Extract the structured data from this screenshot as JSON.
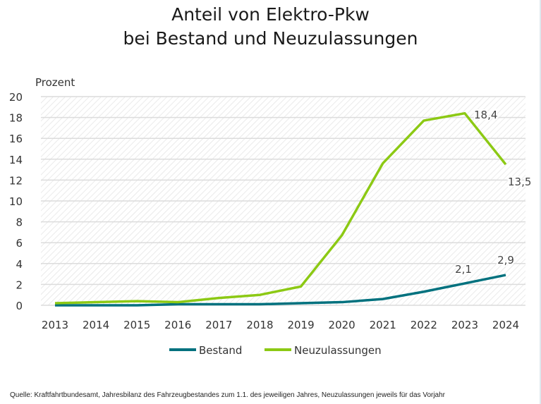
{
  "chart_data": {
    "type": "line",
    "title": [
      "Anteil von Elektro-Pkw",
      "bei Bestand und Neuzulassungen"
    ],
    "ylabel": "Prozent",
    "xlabel": "",
    "ylim": [
      0,
      20
    ],
    "yticks": [
      0,
      2,
      4,
      6,
      8,
      10,
      12,
      14,
      16,
      18,
      20
    ],
    "categories": [
      "2013",
      "2014",
      "2015",
      "2016",
      "2017",
      "2018",
      "2019",
      "2020",
      "2021",
      "2022",
      "2023",
      "2024"
    ],
    "grid": true,
    "legend_position": "bottom",
    "series": [
      {
        "name": "Bestand",
        "color": "#00717e",
        "values": [
          0.0,
          0.0,
          0.0,
          0.1,
          0.1,
          0.1,
          0.2,
          0.3,
          0.6,
          1.3,
          2.1,
          2.9
        ],
        "labels": [
          {
            "index": 10,
            "text": "2,1"
          },
          {
            "index": 11,
            "text": "2,9"
          }
        ]
      },
      {
        "name": "Neuzulassungen",
        "color": "#8cc914",
        "values": [
          0.2,
          0.3,
          0.4,
          0.3,
          0.7,
          1.0,
          1.8,
          6.7,
          13.6,
          17.7,
          18.4,
          13.5
        ],
        "labels": [
          {
            "index": 10,
            "text": "18,4"
          },
          {
            "index": 11,
            "text": "13,5"
          }
        ]
      }
    ]
  },
  "source": "Quelle: Kraftfahrtbundesamt, Jahresbilanz des Fahrzeugbestandes zum 1.1. des jeweiligen Jahres, Neuzulassungen jeweils für das Vorjahr"
}
